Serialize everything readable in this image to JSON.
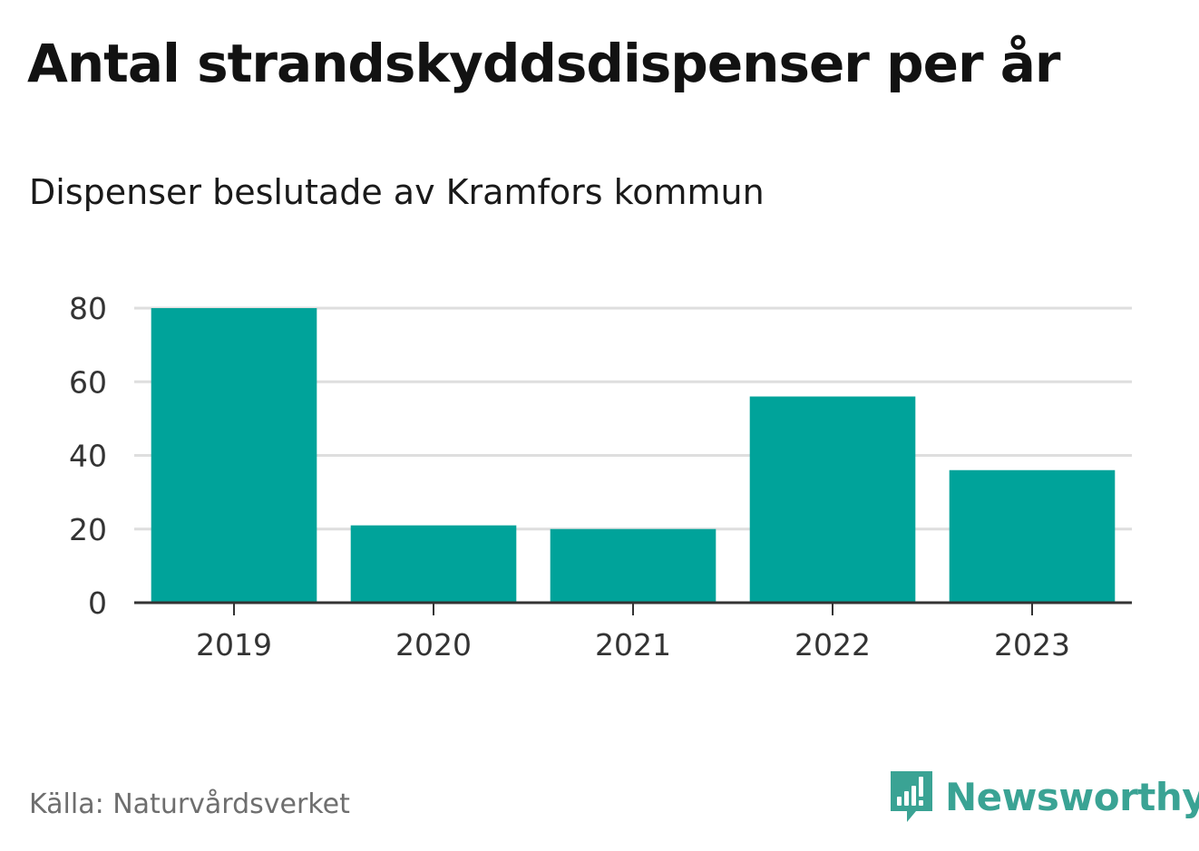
{
  "header": {
    "title": "Antal strandskyddsdispenser per år",
    "subtitle": "Dispenser beslutade av Kramfors kommun"
  },
  "footer": {
    "source": "Källa: Naturvårdsverket",
    "brand_name": "Newsworthy",
    "brand_icon": "newsworthy-logo-icon"
  },
  "colors": {
    "bar": "#00a39a",
    "grid": "#dedede",
    "axis": "#333333",
    "brand": "#3aa394"
  },
  "chart_data": {
    "type": "bar",
    "title": "Antal strandskyddsdispenser per år",
    "subtitle": "Dispenser beslutade av Kramfors kommun",
    "xlabel": "",
    "ylabel": "",
    "categories": [
      "2019",
      "2020",
      "2021",
      "2022",
      "2023"
    ],
    "values": [
      80,
      21,
      20,
      56,
      36
    ],
    "ylim": [
      0,
      80
    ],
    "yticks": [
      0,
      20,
      40,
      60,
      80
    ],
    "grid": true,
    "legend": "none"
  }
}
